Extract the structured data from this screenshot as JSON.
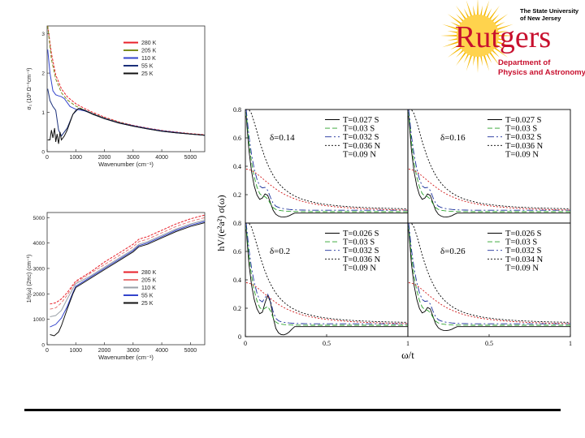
{
  "logo": {
    "institution_line1": "The State University",
    "institution_line2": "of New Jersey",
    "name": "Rutgers",
    "dept_line1": "Department of",
    "dept_line2": "Physics and Astronomy",
    "colors": {
      "sun": "#f5b800",
      "sun_light": "#ffd34d",
      "red": "#c8102e",
      "text": "#000000"
    }
  },
  "chart_data": [
    {
      "id": "sigma1",
      "type": "line",
      "xlabel": "Wavenumber (cm⁻¹)",
      "ylabel": "σ₁ (10³ Ω⁻¹cm⁻¹)",
      "xlim": [
        0,
        5500
      ],
      "ylim": [
        0,
        3.2
      ],
      "xticks": [
        "0",
        "1000",
        "2000",
        "3000",
        "4000",
        "5000"
      ],
      "yticks": [
        "0",
        "1",
        "2",
        "3"
      ],
      "legend": [
        "280 K",
        "205 K",
        "110 K",
        "55 K",
        "25 K"
      ],
      "series": [
        {
          "name": "280 K",
          "color": "#e8202a",
          "x": [
            20,
            150,
            300,
            500,
            700,
            1000,
            1300,
            1600,
            2000,
            2500,
            3000,
            3500,
            4000,
            4500,
            5000,
            5500
          ],
          "y": [
            3.2,
            2.5,
            1.95,
            1.6,
            1.4,
            1.22,
            1.1,
            1.0,
            0.88,
            0.76,
            0.67,
            0.6,
            0.54,
            0.5,
            0.46,
            0.43
          ]
        },
        {
          "name": "205 K",
          "color": "#7a8c1e",
          "x": [
            20,
            150,
            300,
            500,
            700,
            1000,
            1300,
            1600,
            2000,
            2500,
            3000,
            3500,
            4000,
            4500,
            5000,
            5500
          ],
          "y": [
            3.2,
            2.35,
            1.85,
            1.5,
            1.32,
            1.16,
            1.06,
            0.97,
            0.86,
            0.75,
            0.66,
            0.59,
            0.53,
            0.49,
            0.45,
            0.42
          ]
        },
        {
          "name": "110 K",
          "color": "#3344cc",
          "x": [
            20,
            100,
            200,
            300,
            400,
            500,
            600,
            800,
            1000,
            1300,
            1600,
            2000,
            2500,
            3000,
            3500,
            4000,
            4500,
            5000,
            5500
          ],
          "y": [
            2.6,
            2.0,
            1.55,
            1.45,
            1.42,
            1.4,
            1.35,
            1.15,
            1.08,
            1.04,
            0.96,
            0.85,
            0.74,
            0.66,
            0.59,
            0.53,
            0.49,
            0.45,
            0.42
          ]
        },
        {
          "name": "55 K",
          "color": "#1a2f7a",
          "x": [
            20,
            100,
            200,
            300,
            400,
            500,
            700,
            900,
            1100,
            1300,
            1600,
            2000,
            2500,
            3000,
            3500,
            4000,
            4500,
            5000,
            5500
          ],
          "y": [
            1.6,
            1.3,
            1.15,
            1.05,
            0.55,
            0.4,
            0.6,
            0.95,
            1.1,
            1.06,
            0.96,
            0.84,
            0.73,
            0.65,
            0.58,
            0.52,
            0.48,
            0.45,
            0.42
          ]
        },
        {
          "name": "25 K",
          "color": "#111111",
          "x": [
            20,
            100,
            150,
            200,
            260,
            300,
            350,
            400,
            450,
            500,
            600,
            700,
            800,
            900,
            1000,
            1100,
            1300,
            1600,
            2000,
            2500,
            3000,
            3500,
            4000,
            4500,
            5000,
            5500
          ],
          "y": [
            0.3,
            0.3,
            0.55,
            0.35,
            0.6,
            0.25,
            0.45,
            0.2,
            0.5,
            0.3,
            0.4,
            0.55,
            0.75,
            0.95,
            1.05,
            1.1,
            1.05,
            0.95,
            0.84,
            0.73,
            0.65,
            0.58,
            0.52,
            0.48,
            0.45,
            0.42
          ]
        }
      ]
    },
    {
      "id": "scattering-rate",
      "type": "line",
      "xlabel": "Wavenumber (cm⁻¹)",
      "ylabel": "1/τ(ω) (2πc) (cm⁻¹)",
      "xlim": [
        0,
        5500
      ],
      "ylim": [
        0,
        5200
      ],
      "xticks": [
        "0",
        "1000",
        "2000",
        "3000",
        "4000",
        "5000"
      ],
      "yticks": [
        "0",
        "1000",
        "2000",
        "3000",
        "4000",
        "5000"
      ],
      "legend": [
        "280 K",
        "205 K",
        "110 K",
        "55 K",
        "25 K"
      ],
      "series": [
        {
          "name": "280 K",
          "color": "#e8202a",
          "x": [
            100,
            300,
            500,
            700,
            900,
            1000,
            1500,
            2000,
            2500,
            3000,
            3200,
            3500,
            4000,
            4500,
            5000,
            5500
          ],
          "y": [
            1600,
            1650,
            1800,
            2050,
            2350,
            2500,
            2850,
            3250,
            3600,
            3950,
            4150,
            4250,
            4500,
            4750,
            4950,
            5100
          ]
        },
        {
          "name": "205 K",
          "color": "#e87a7a",
          "x": [
            100,
            300,
            500,
            700,
            900,
            1000,
            1500,
            2000,
            2500,
            3000,
            3200,
            3500,
            4000,
            4500,
            5000,
            5500
          ],
          "y": [
            1400,
            1450,
            1650,
            1950,
            2300,
            2450,
            2800,
            3150,
            3500,
            3850,
            4050,
            4150,
            4400,
            4650,
            4850,
            5000
          ]
        },
        {
          "name": "110 K",
          "color": "#9aa0a8",
          "x": [
            100,
            300,
            500,
            700,
            900,
            1000,
            1500,
            2000,
            2500,
            3000,
            3200,
            3500,
            4000,
            4500,
            5000,
            5500
          ],
          "y": [
            1100,
            1150,
            1350,
            1800,
            2200,
            2400,
            2700,
            3050,
            3400,
            3750,
            3950,
            4050,
            4300,
            4550,
            4750,
            4900
          ]
        },
        {
          "name": "55 K",
          "color": "#3344cc",
          "x": [
            100,
            300,
            500,
            700,
            900,
            1000,
            1500,
            2000,
            2500,
            3000,
            3200,
            3500,
            4000,
            4500,
            5000,
            5500
          ],
          "y": [
            700,
            800,
            1050,
            1500,
            2050,
            2300,
            2650,
            3000,
            3350,
            3700,
            3900,
            4000,
            4250,
            4500,
            4700,
            4850
          ]
        },
        {
          "name": "25 K",
          "color": "#111111",
          "x": [
            100,
            250,
            400,
            500,
            700,
            900,
            1000,
            1500,
            2000,
            2500,
            3000,
            3200,
            3500,
            4000,
            4500,
            5000,
            5500
          ],
          "y": [
            400,
            350,
            500,
            750,
            1400,
            2000,
            2250,
            2600,
            2950,
            3300,
            3650,
            3850,
            3950,
            4200,
            4450,
            4650,
            4800
          ]
        }
      ]
    },
    {
      "id": "theory-conductivity",
      "type": "line",
      "xlabel": "ω/t",
      "ylabel": "hV/(e²a²) σ(ω)",
      "ylim": [
        0,
        0.8
      ],
      "yticks": [
        "0",
        "0.2",
        "0.4",
        "0.6",
        "0.8"
      ],
      "xticks": [
        "0",
        "0.5",
        "1"
      ],
      "panels": [
        {
          "delta": "δ=0.14",
          "legend": [
            "T=0.027 S",
            "T=0.03 S",
            "T=0.032 S",
            "T=0.036 N",
            "T=0.09 N"
          ]
        },
        {
          "delta": "δ=0.16",
          "legend": [
            "T=0.027 S",
            "T=0.03 S",
            "T=0.032 S",
            "T=0.036 N",
            "T=0.09 N"
          ]
        },
        {
          "delta": "δ=0.2",
          "legend": [
            "T=0.026 S",
            "T=0.03 S",
            "T=0.032 S",
            "T=0.036 N",
            "T=0.09 N"
          ]
        },
        {
          "delta": "δ=0.26",
          "legend": [
            "T=0.026 S",
            "T=0.03 S",
            "T=0.032 S",
            "T=0.034 N",
            "T=0.09 N"
          ]
        }
      ],
      "series_colors": [
        "#000000",
        "#2aa02a",
        "#1a2f9a",
        "#000000",
        "#d11a1a"
      ],
      "series_dash": [
        "",
        "6,3",
        "8,3,2,3",
        "2,2",
        "2,2"
      ]
    }
  ]
}
